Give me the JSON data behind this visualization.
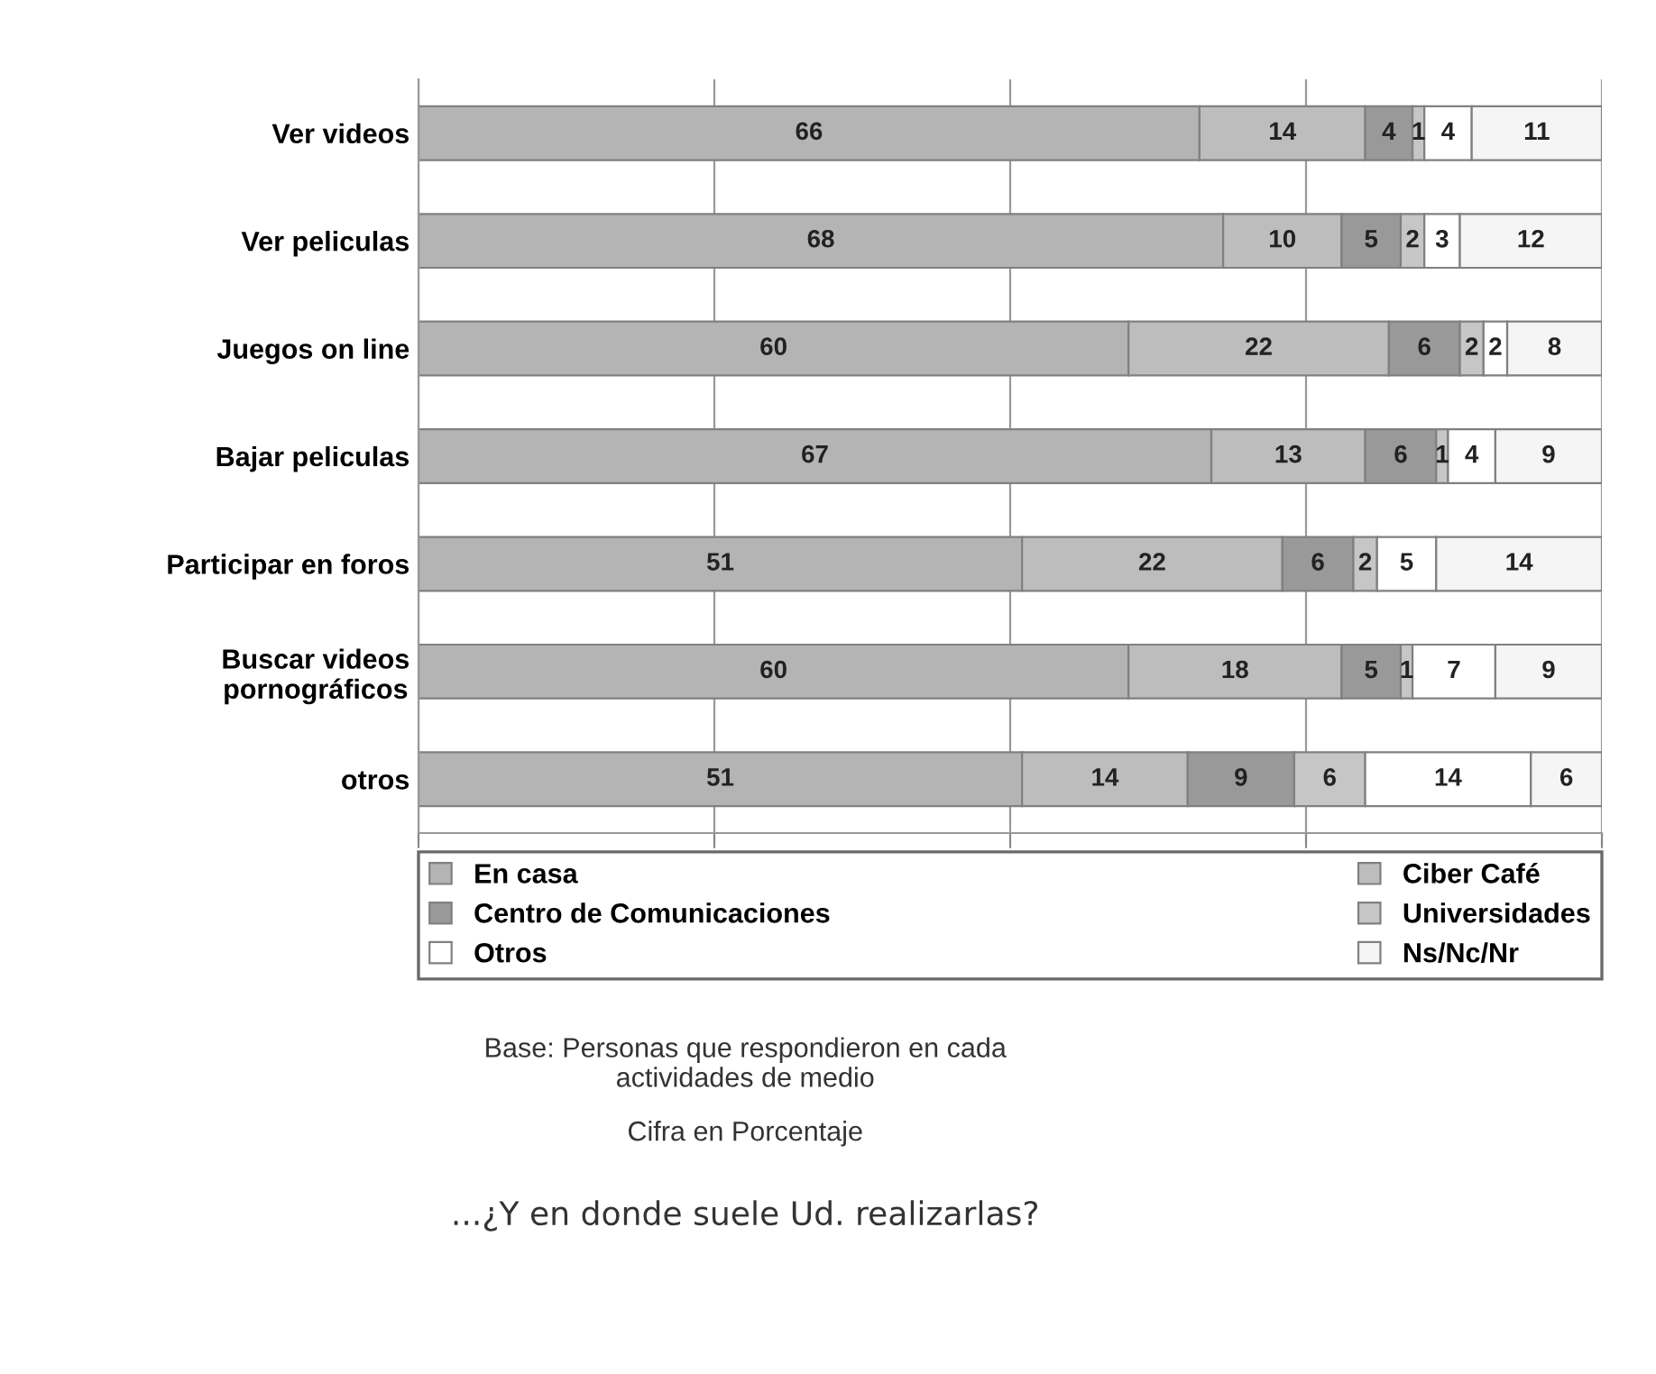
{
  "chart_data": {
    "type": "bar",
    "orientation": "horizontal",
    "stacked": true,
    "data_labels": true,
    "categories": [
      "Ver videos",
      "Ver peliculas",
      "Juegos on line",
      "Bajar peliculas",
      "Participar en foros",
      "Buscar videos\npornográficos",
      "otros"
    ],
    "series": [
      {
        "name": "En casa",
        "color": "#b4b4b4",
        "values": [
          66,
          68,
          60,
          67,
          51,
          60,
          51
        ]
      },
      {
        "name": "Ciber Café",
        "color": "#bdbdbd",
        "values": [
          14,
          10,
          22,
          13,
          22,
          18,
          14
        ]
      },
      {
        "name": "Centro de Comunicaciones",
        "color": "#999999",
        "values": [
          4,
          5,
          6,
          6,
          6,
          5,
          9
        ]
      },
      {
        "name": "Universidades",
        "color": "#c6c6c6",
        "values": [
          1,
          2,
          2,
          1,
          2,
          1,
          6
        ]
      },
      {
        "name": "Otros",
        "color": "#ffffff",
        "values": [
          4,
          3,
          2,
          4,
          5,
          7,
          14
        ]
      },
      {
        "name": "Ns/Nc/Nr",
        "color": "#f5f5f5",
        "values": [
          11,
          12,
          8,
          9,
          14,
          9,
          6
        ]
      }
    ],
    "xlim": [
      0,
      100
    ],
    "xticks": [
      {
        "value": 0,
        "label": null
      },
      {
        "value": 25,
        "label": null
      },
      {
        "value": 50,
        "label": null
      },
      {
        "value": 75,
        "label": null
      },
      {
        "value": 100,
        "label": null
      }
    ],
    "tick_labels": "y",
    "grid": "x",
    "legend": "bottom",
    "annotations": [
      "Base: Personas que respondieron en cada\nactividades de medio",
      "Cifra en Porcentaje",
      "...¿Y en donde suele Ud. realizarlas?"
    ]
  }
}
